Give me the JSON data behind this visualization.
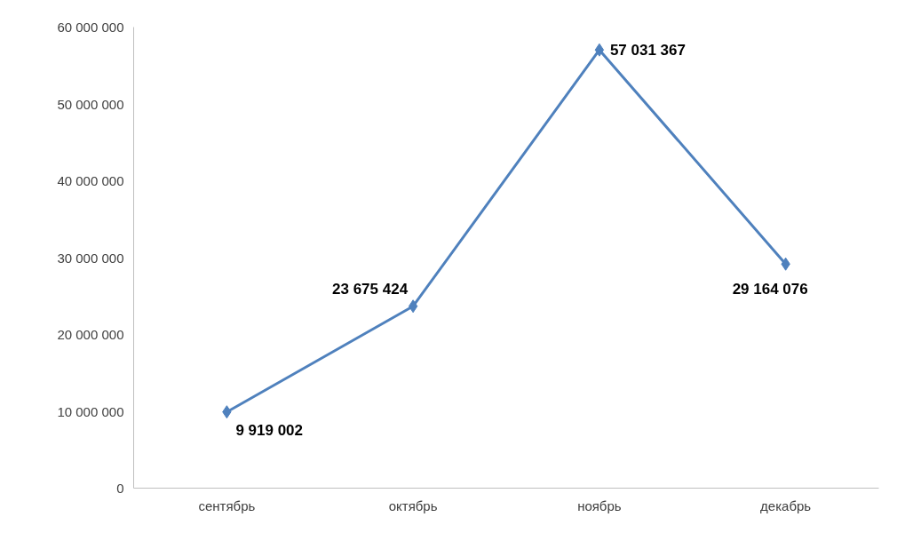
{
  "chart_data": {
    "type": "line",
    "categories": [
      "сентябрь",
      "октябрь",
      "ноябрь",
      "декабрь"
    ],
    "series": [
      {
        "color": "#4f81bd",
        "values": [
          9919002,
          23675424,
          57031367,
          29164076
        ]
      }
    ],
    "ylim": [
      0,
      60000000
    ],
    "yticks": [
      0,
      {
        "value": 10000000,
        "label": "10 000 000"
      },
      {
        "value": 20000000,
        "label": "20 000 000"
      },
      {
        "value": 30000000,
        "label": "30 000 000"
      },
      {
        "value": 40000000,
        "label": "40 000 000"
      },
      {
        "value": 50000000,
        "label": "50 000 000"
      },
      {
        "value": 60000000,
        "label": "60 000 000"
      }
    ],
    "grid": false,
    "marker": "diamond",
    "line_style": "solid",
    "data_labels": true
  }
}
